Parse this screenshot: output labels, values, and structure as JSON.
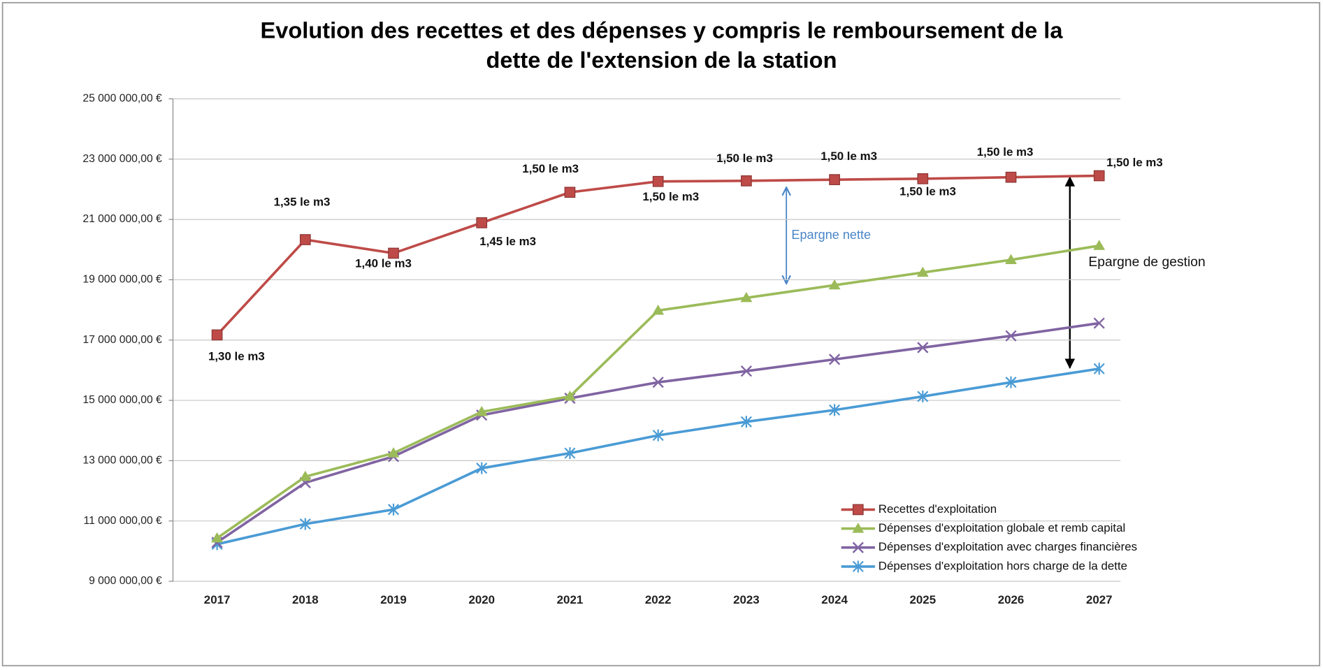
{
  "chart_data": {
    "type": "line",
    "title": [
      "Evolution des recettes et des dépenses y compris le remboursement de la",
      "dette de l'extension de la station"
    ],
    "categories": [
      "2017",
      "2018",
      "2019",
      "2020",
      "2021",
      "2022",
      "2023",
      "2024",
      "2025",
      "2026",
      "2027"
    ],
    "series": [
      {
        "name": "Recettes d'exploitation",
        "color": "#be4b48",
        "marker": "square",
        "values": [
          17170000,
          20330000,
          19880000,
          20890000,
          21900000,
          22260000,
          22280000,
          22320000,
          22350000,
          22400000,
          22450000
        ]
      },
      {
        "name": "Dépenses d'exploitation globale et remb capital",
        "color": "#9bbb59",
        "marker": "triangle",
        "values": [
          10430000,
          12470000,
          13250000,
          14620000,
          15130000,
          17980000,
          18400000,
          18820000,
          19240000,
          19660000,
          20130000
        ]
      },
      {
        "name": "Dépenses d'exploitation avec charges financières",
        "color": "#8064a2",
        "marker": "x",
        "values": [
          10290000,
          12270000,
          13140000,
          14510000,
          15070000,
          15600000,
          15970000,
          16360000,
          16750000,
          17140000,
          17560000
        ]
      },
      {
        "name": "Dépenses d'exploitation hors charge de la dette",
        "color": "#4a9bd5",
        "marker": "star",
        "values": [
          10230000,
          10900000,
          11380000,
          12750000,
          13250000,
          13840000,
          14290000,
          14680000,
          15130000,
          15600000,
          16050000
        ]
      }
    ],
    "point_labels": [
      "1,30 le m3",
      "1,35 le m3",
      "1,40 le m3",
      "1,45 le m3",
      "1,50 le m3",
      "1,50 le m3",
      "1,50 le m3",
      "1,50 le m3",
      "1,50 le m3",
      "1,50 le m3",
      "1,50 le m3"
    ],
    "annotations": [
      "Epargne nette",
      "Epargne de gestion"
    ],
    "ylim": [
      9000000,
      25000000
    ],
    "yticks": [
      {
        "value": 9000000,
        "label": "9 000 000,00 €"
      },
      {
        "value": 11000000,
        "label": "11 000 000,00 €"
      },
      {
        "value": 13000000,
        "label": "13 000 000,00 €"
      },
      {
        "value": 15000000,
        "label": "15 000 000,00 €"
      },
      {
        "value": 17000000,
        "label": "17 000 000,00 €"
      },
      {
        "value": 19000000,
        "label": "19 000 000,00 €"
      },
      {
        "value": 21000000,
        "label": "21 000 000,00 €"
      },
      {
        "value": 23000000,
        "label": "23 000 000,00 €"
      },
      {
        "value": 25000000,
        "label": "25 000 000,00 €"
      }
    ],
    "grid": true,
    "legend": "lower right"
  }
}
